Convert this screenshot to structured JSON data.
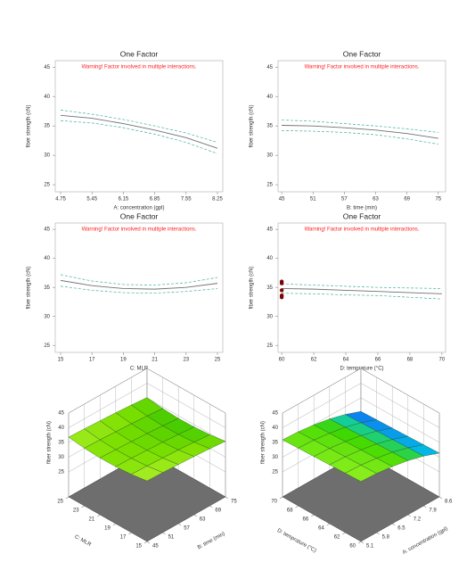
{
  "chart_data": [
    {
      "type": "line",
      "title": "One Factor",
      "annotation": "Warning! Factor involved in multiple interactions.",
      "xlabel": "A: concentration (gpl)",
      "ylabel": "fiber strength (cN)",
      "x": [
        4.75,
        5.45,
        6.15,
        6.85,
        7.55,
        8.25
      ],
      "xlim": [
        4.63,
        8.37
      ],
      "xticks": [
        4.75,
        5.45,
        6.15,
        6.85,
        7.55,
        8.25
      ],
      "ylim": [
        23.8,
        46.1
      ],
      "yticks": [
        25,
        30,
        35,
        40,
        45
      ],
      "series": [
        {
          "color": "#707070",
          "values": [
            36.8,
            36.3,
            35.4,
            34.3,
            33.0,
            31.2
          ]
        },
        {
          "color": "#40b0a0",
          "dash": true,
          "values": [
            37.7,
            37.0,
            36.1,
            35.0,
            33.8,
            32.2
          ]
        },
        {
          "color": "#40b0a0",
          "dash": true,
          "values": [
            35.9,
            35.5,
            34.7,
            33.6,
            32.2,
            30.3
          ]
        }
      ]
    },
    {
      "type": "line",
      "title": "One Factor",
      "annotation": "Warning! Factor involved in multiple interactions.",
      "xlabel": "B: time (min)",
      "ylabel": "fiber strength (cN)",
      "x": [
        45,
        51,
        57,
        63,
        69,
        75
      ],
      "xlim": [
        44.3,
        76.4
      ],
      "xticks": [
        45,
        51,
        57,
        63,
        69,
        75
      ],
      "ylim": [
        23.8,
        46.1
      ],
      "yticks": [
        25,
        30,
        35,
        40,
        45
      ],
      "series": [
        {
          "color": "#707070",
          "values": [
            35.1,
            35.0,
            34.7,
            34.3,
            33.7,
            32.9
          ]
        },
        {
          "color": "#40b0a0",
          "dash": true,
          "values": [
            36.0,
            35.8,
            35.4,
            35.0,
            34.5,
            33.9
          ]
        },
        {
          "color": "#40b0a0",
          "dash": true,
          "values": [
            34.2,
            34.1,
            33.9,
            33.5,
            32.8,
            31.9
          ]
        }
      ]
    },
    {
      "type": "line",
      "title": "One Factor",
      "annotation": "Warning! Factor involved in multiple interactions.",
      "xlabel": "C: MLR",
      "ylabel": "fiber strength (cN)",
      "x": [
        15,
        17,
        19,
        21,
        23,
        25
      ],
      "xlim": [
        14.66,
        25.34
      ],
      "xticks": [
        15,
        17,
        19,
        21,
        23,
        25
      ],
      "ylim": [
        23.8,
        46.1
      ],
      "yticks": [
        25,
        30,
        35,
        40,
        45
      ],
      "series": [
        {
          "color": "#707070",
          "values": [
            36.2,
            35.3,
            34.8,
            34.7,
            35.0,
            35.7
          ]
        },
        {
          "color": "#40b0a0",
          "dash": true,
          "values": [
            37.2,
            36.1,
            35.5,
            35.4,
            35.8,
            36.7
          ]
        },
        {
          "color": "#40b0a0",
          "dash": true,
          "values": [
            35.2,
            34.5,
            34.1,
            34.0,
            34.3,
            34.8
          ]
        }
      ]
    },
    {
      "type": "line",
      "title": "One Factor",
      "annotation": "Warning! Factor involved in multiple interactions.",
      "xlabel": "D: temprature (°C)",
      "ylabel": "fiber strength (cN)",
      "x": [
        60,
        62,
        64,
        66,
        68,
        70
      ],
      "xlim": [
        59.77,
        70.23
      ],
      "xticks": [
        60,
        62,
        64,
        66,
        68,
        70
      ],
      "ylim": [
        23.8,
        46.1
      ],
      "yticks": [
        25,
        30,
        35,
        40,
        45
      ],
      "series": [
        {
          "color": "#707070",
          "values": [
            34.8,
            34.7,
            34.5,
            34.3,
            34.1,
            33.9
          ]
        },
        {
          "color": "#40b0a0",
          "dash": true,
          "values": [
            35.6,
            35.4,
            35.2,
            35.0,
            34.9,
            34.8
          ]
        },
        {
          "color": "#40b0a0",
          "dash": true,
          "values": [
            34.0,
            33.9,
            33.7,
            33.6,
            33.3,
            33.0
          ]
        },
        {
          "color": "#8b0000",
          "marker": true,
          "x": [
            60,
            60,
            60,
            60,
            60
          ],
          "values": [
            36.0,
            35.7,
            34.5,
            33.6,
            33.3
          ]
        }
      ]
    },
    {
      "type": "surface",
      "xlabel": "B: time (min)",
      "ylabel": "C: MLR",
      "zlabel": "fiber strength (cN)",
      "xticks": [
        45,
        51,
        57,
        63,
        69,
        75
      ],
      "yticks": [
        15,
        17,
        19,
        21,
        23,
        25
      ],
      "zlim": [
        25,
        45
      ],
      "zticks": [
        25,
        30,
        35,
        40,
        45
      ],
      "colors": [
        "#3cc800",
        "#7ee000",
        "#b4f030"
      ],
      "z": [
        [
          37.1,
          36.3,
          35.9,
          35.8,
          36.1,
          36.8
        ],
        [
          36.9,
          36.1,
          35.7,
          35.6,
          35.9,
          36.6
        ],
        [
          36.6,
          35.8,
          35.4,
          35.3,
          35.6,
          36.3
        ],
        [
          36.3,
          35.5,
          35.1,
          35.0,
          35.3,
          36.0
        ],
        [
          35.9,
          35.1,
          34.7,
          34.6,
          34.9,
          35.6
        ],
        [
          35.4,
          34.6,
          34.2,
          34.1,
          34.4,
          35.1
        ]
      ]
    },
    {
      "type": "surface",
      "xlabel": "A: concentration (gpl)",
      "ylabel": "D: temprature (°C)",
      "zlabel": "fiber strength (cN)",
      "xticks": [
        5.1,
        5.8,
        6.5,
        7.2,
        7.9,
        8.6
      ],
      "yticks": [
        60,
        62,
        64,
        66,
        68,
        70
      ],
      "zlim": [
        25,
        45
      ],
      "zticks": [
        25,
        30,
        35,
        40,
        45
      ],
      "colors": [
        "#1a3cff",
        "#00c8e0",
        "#40d800",
        "#90f020"
      ],
      "z": [
        [
          36.9,
          36.7,
          36.5,
          36.3,
          36.1,
          35.9
        ],
        [
          36.6,
          36.4,
          36.2,
          36.0,
          35.8,
          35.6
        ],
        [
          35.9,
          35.7,
          35.5,
          35.3,
          35.1,
          34.9
        ],
        [
          34.9,
          34.7,
          34.5,
          34.3,
          34.1,
          33.9
        ],
        [
          33.4,
          33.2,
          33.0,
          32.8,
          32.6,
          32.4
        ],
        [
          31.4,
          31.2,
          31.0,
          30.8,
          30.6,
          30.4
        ]
      ]
    }
  ]
}
